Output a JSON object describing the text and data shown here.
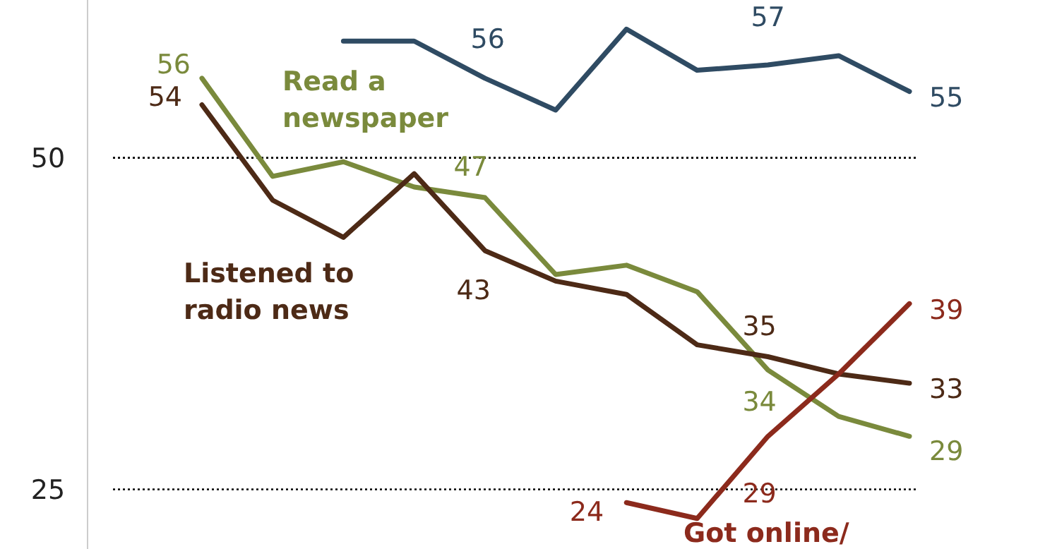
{
  "chart_data": {
    "type": "line",
    "categories": [
      null,
      null,
      null,
      null,
      null,
      null,
      null,
      null,
      null,
      null,
      null
    ],
    "ylim": [
      20.5,
      61.9
    ],
    "yticks": [
      25,
      50
    ],
    "grid": "y",
    "line_style": "solid",
    "series": [
      {
        "color": "#2f4b63",
        "values": [
          null,
          null,
          58.8,
          58.8,
          56,
          53.6,
          59.7,
          56.6,
          57,
          57.7,
          55
        ],
        "value_labels": [
          null,
          null,
          null,
          null,
          "56",
          null,
          null,
          null,
          "57",
          null,
          "55"
        ]
      },
      {
        "name": "Read a newspaper",
        "color": "#7a8a3c",
        "values": [
          56,
          48.6,
          49.7,
          47.8,
          47,
          41.2,
          41.9,
          39.9,
          34,
          30.5,
          29
        ],
        "value_labels": [
          "56",
          null,
          null,
          null,
          "47",
          null,
          null,
          null,
          "34",
          null,
          "29"
        ]
      },
      {
        "name": "Listened to radio news",
        "color": "#4d2a16",
        "values": [
          54,
          46.8,
          44,
          48.8,
          43,
          40.7,
          39.7,
          35.9,
          35,
          33.7,
          33
        ],
        "value_labels": [
          "54",
          null,
          null,
          null,
          "43",
          null,
          null,
          null,
          "35",
          null,
          "33"
        ]
      },
      {
        "name": "Got online/",
        "color": "#8c2a1c",
        "values": [
          null,
          null,
          null,
          null,
          null,
          null,
          24,
          22.8,
          29,
          33.7,
          39
        ],
        "value_labels": [
          null,
          null,
          null,
          null,
          null,
          null,
          "24",
          null,
          "29",
          null,
          "39"
        ]
      }
    ]
  }
}
